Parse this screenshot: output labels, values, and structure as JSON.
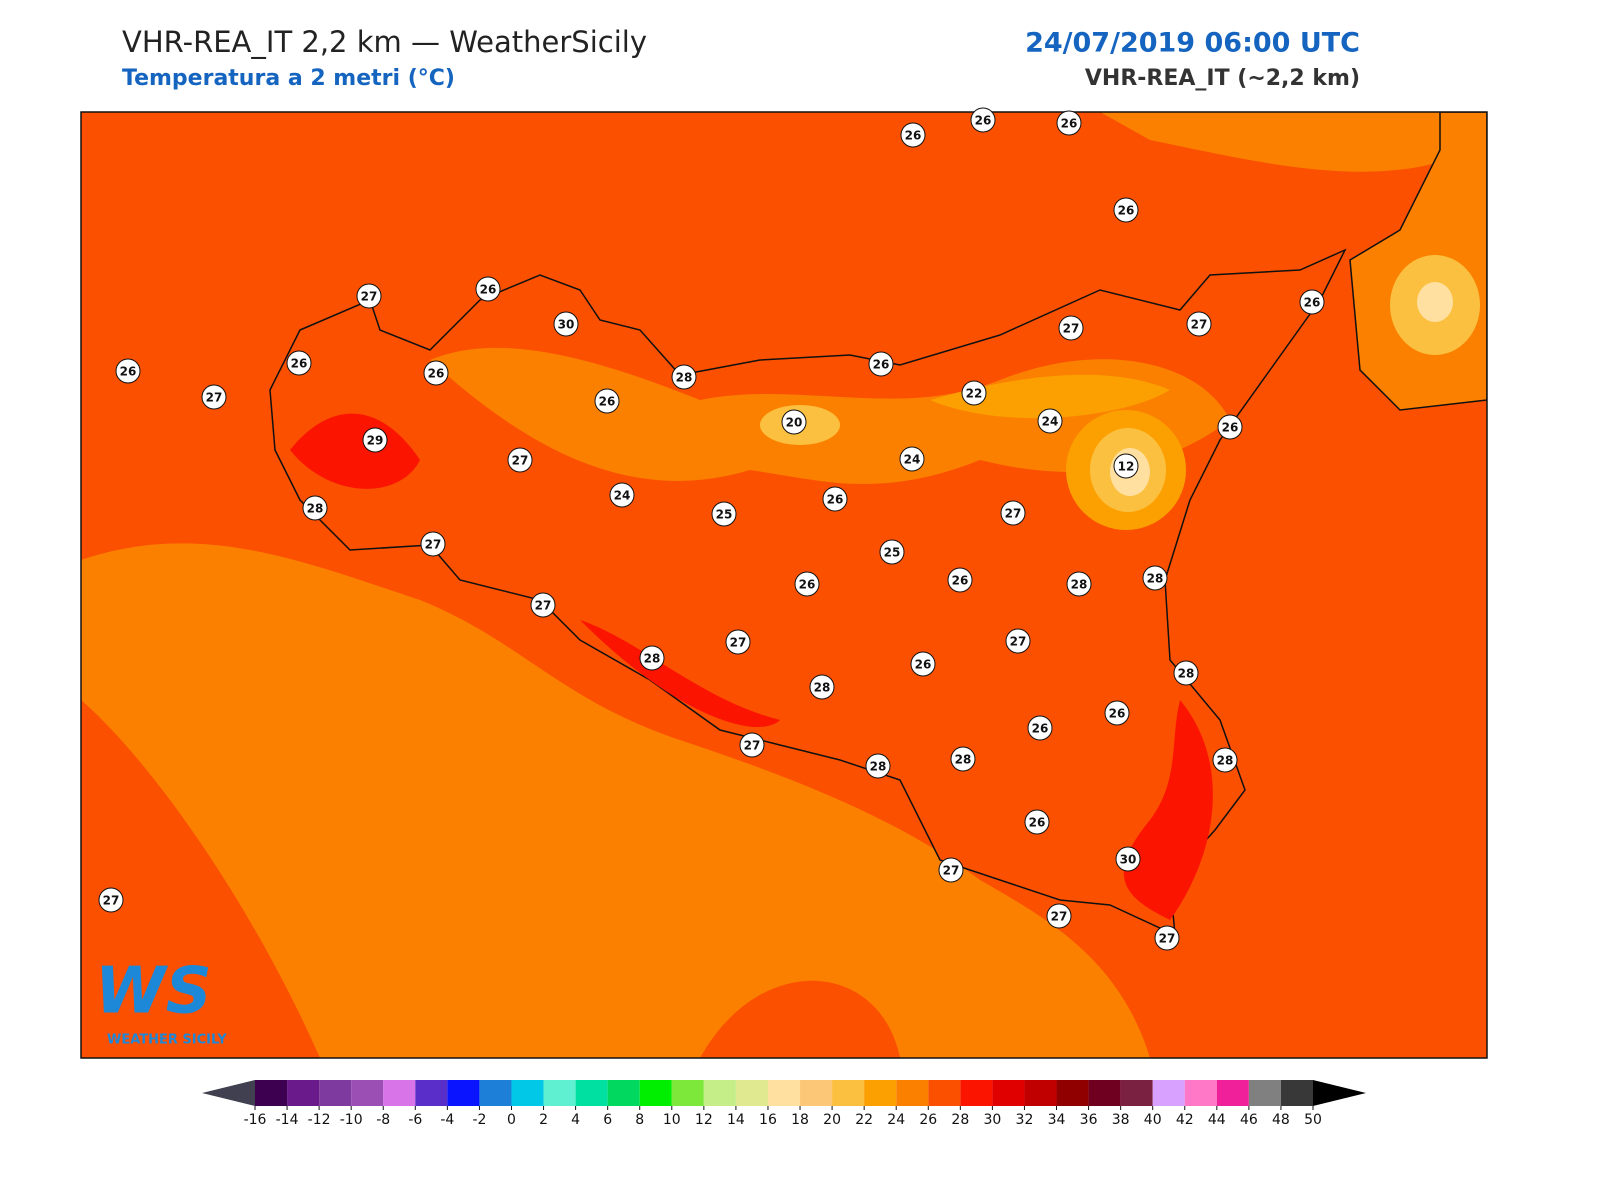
{
  "header": {
    "title": "VHR-REA_IT 2,2 km — WeatherSicily",
    "subtitle": "Temperatura a 2 metri (°C)",
    "datetime": "24/07/2019 06:00 UTC",
    "model": "VHR-REA_IT (~2,2 km)"
  },
  "stations": [
    26,
    26,
    26,
    26,
    27,
    26,
    30,
    26,
    26,
    26,
    27,
    26,
    28,
    26,
    27,
    27,
    26,
    22,
    20,
    24,
    26,
    29,
    27,
    24,
    12,
    24,
    26,
    25,
    28,
    27,
    27,
    25,
    26,
    26,
    28,
    28,
    27,
    27,
    27,
    28,
    26,
    28,
    28,
    26,
    26,
    27,
    28,
    28,
    28,
    26,
    30,
    27,
    27,
    27,
    27
  ],
  "colorbar": {
    "ticks": [
      -16,
      -14,
      -12,
      -10,
      -8,
      -6,
      -4,
      -2,
      0,
      2,
      4,
      6,
      8,
      10,
      12,
      14,
      16,
      18,
      20,
      22,
      24,
      26,
      28,
      30,
      32,
      34,
      36,
      38,
      40,
      42,
      44,
      46,
      48,
      50
    ],
    "colors": [
      "#3d0050",
      "#6a1a8a",
      "#7e3a9e",
      "#9b4fb5",
      "#d973e8",
      "#5a2ec8",
      "#0a14ff",
      "#1e7fd8",
      "#00c8e6",
      "#5ef0d0",
      "#00e0a0",
      "#00d860",
      "#00ee00",
      "#7ee83a",
      "#c6ee88",
      "#e0e890",
      "#ffe0a0",
      "#fcc878",
      "#fcc040",
      "#fba000",
      "#fb8000",
      "#fb5000",
      "#fb1400",
      "#e00000",
      "#c00000",
      "#900000",
      "#700020",
      "#7a2040",
      "#d8a0ff",
      "#ff78c8",
      "#f0209a",
      "#808080",
      "#383838"
    ],
    "under_color": "#404050",
    "over_color": "#000000"
  },
  "logo": {
    "mark": "WS",
    "text": "WEATHER SICILY"
  }
}
